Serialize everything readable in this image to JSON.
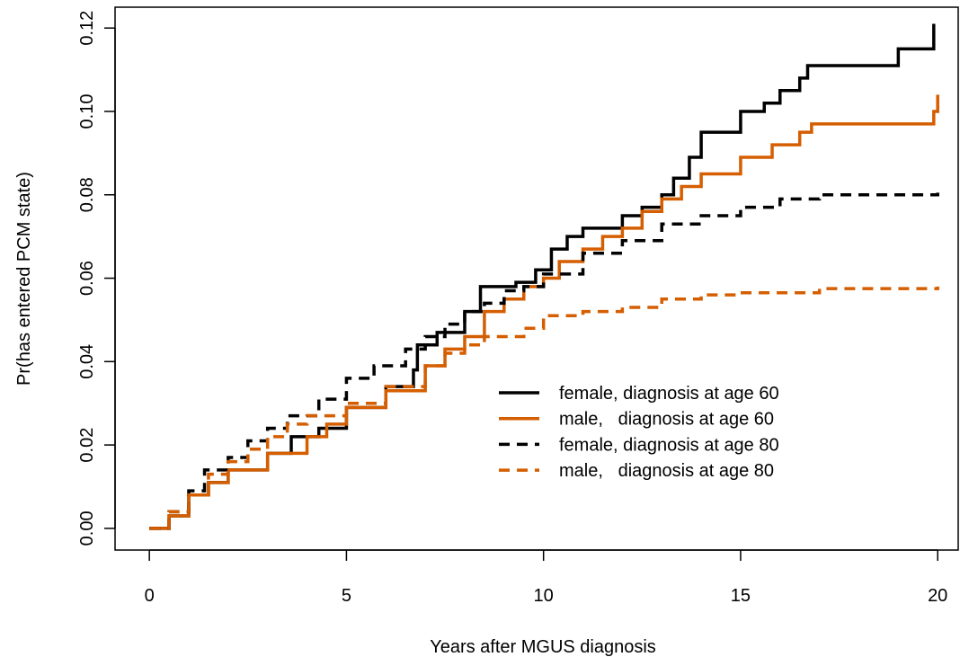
{
  "chart_data": {
    "type": "step",
    "xlabel": "Years after MGUS diagnosis",
    "ylabel": "Pr(has entered PCM state)",
    "xlim": [
      -0.87,
      20.52
    ],
    "ylim": [
      -0.0052,
      0.125
    ],
    "xticks": [
      0,
      5,
      10,
      15,
      20
    ],
    "yticks": [
      {
        "value": 0,
        "label": "0.00"
      },
      {
        "value": 0.02,
        "label": "0.02"
      },
      {
        "value": 0.04,
        "label": "0.04"
      },
      {
        "value": 0.06,
        "label": "0.06"
      },
      {
        "value": 0.08,
        "label": "0.08"
      },
      {
        "value": 0.1,
        "label": "0.10"
      },
      {
        "value": 0.12,
        "label": "0.12"
      }
    ],
    "series": [
      {
        "name": "female, diagnosis at age 60",
        "color": "#000000",
        "dash": false,
        "x": [
          0,
          0.5,
          1,
          1.5,
          2,
          3,
          3.6,
          4.3,
          5,
          6,
          6.7,
          6.8,
          7.3,
          8,
          8.4,
          9.3,
          9.8,
          10.2,
          10.6,
          11,
          12,
          12.5,
          13,
          13.3,
          13.7,
          14,
          15,
          15.6,
          16,
          16.5,
          16.7,
          19,
          19.9
        ],
        "values": [
          0,
          0.003,
          0.008,
          0.011,
          0.014,
          0.018,
          0.022,
          0.024,
          0.029,
          0.034,
          0.038,
          0.044,
          0.047,
          0.052,
          0.058,
          0.059,
          0.062,
          0.067,
          0.07,
          0.072,
          0.075,
          0.077,
          0.08,
          0.084,
          0.089,
          0.095,
          0.1,
          0.102,
          0.105,
          0.108,
          0.111,
          0.115,
          0.121
        ]
      },
      {
        "name": "male,   diagnosis at age 60",
        "color": "#d55e00",
        "dash": false,
        "x": [
          0,
          0.5,
          1,
          1.5,
          2,
          3,
          4,
          4.5,
          5,
          6,
          7,
          7.5,
          8,
          8.5,
          9,
          9.5,
          10,
          10.4,
          11,
          11.5,
          12,
          12.5,
          13,
          13.5,
          14,
          15,
          15.8,
          16.5,
          16.8,
          19.9,
          20
        ],
        "values": [
          0,
          0.003,
          0.008,
          0.011,
          0.014,
          0.018,
          0.022,
          0.025,
          0.029,
          0.033,
          0.039,
          0.043,
          0.046,
          0.052,
          0.055,
          0.058,
          0.06,
          0.064,
          0.067,
          0.07,
          0.072,
          0.076,
          0.079,
          0.082,
          0.085,
          0.089,
          0.092,
          0.095,
          0.097,
          0.1,
          0.104
        ]
      },
      {
        "name": "female, diagnosis at age 80",
        "color": "#000000",
        "dash": true,
        "x": [
          0,
          0.5,
          1,
          1.4,
          2,
          2.5,
          3,
          3.5,
          4.3,
          5,
          5.7,
          6.5,
          7,
          7.5,
          8,
          8.5,
          9,
          9.5,
          10,
          11,
          12,
          13,
          14,
          15,
          16,
          17,
          20
        ],
        "values": [
          0,
          0.004,
          0.009,
          0.014,
          0.017,
          0.021,
          0.024,
          0.027,
          0.031,
          0.036,
          0.039,
          0.043,
          0.046,
          0.049,
          0.052,
          0.054,
          0.057,
          0.058,
          0.061,
          0.066,
          0.069,
          0.073,
          0.075,
          0.077,
          0.079,
          0.08,
          0.0805
        ]
      },
      {
        "name": "male,   diagnosis at age 80",
        "color": "#d55e00",
        "dash": true,
        "x": [
          0,
          0.5,
          1,
          1.5,
          2,
          2.5,
          3,
          3.5,
          4,
          5,
          6,
          7,
          7.5,
          8,
          8.5,
          9.5,
          10,
          11,
          12,
          13,
          14,
          15,
          17,
          20
        ],
        "values": [
          0,
          0.004,
          0.008,
          0.013,
          0.016,
          0.019,
          0.022,
          0.025,
          0.027,
          0.03,
          0.034,
          0.039,
          0.042,
          0.044,
          0.046,
          0.048,
          0.051,
          0.052,
          0.053,
          0.055,
          0.056,
          0.0565,
          0.0575,
          0.058
        ]
      }
    ]
  }
}
